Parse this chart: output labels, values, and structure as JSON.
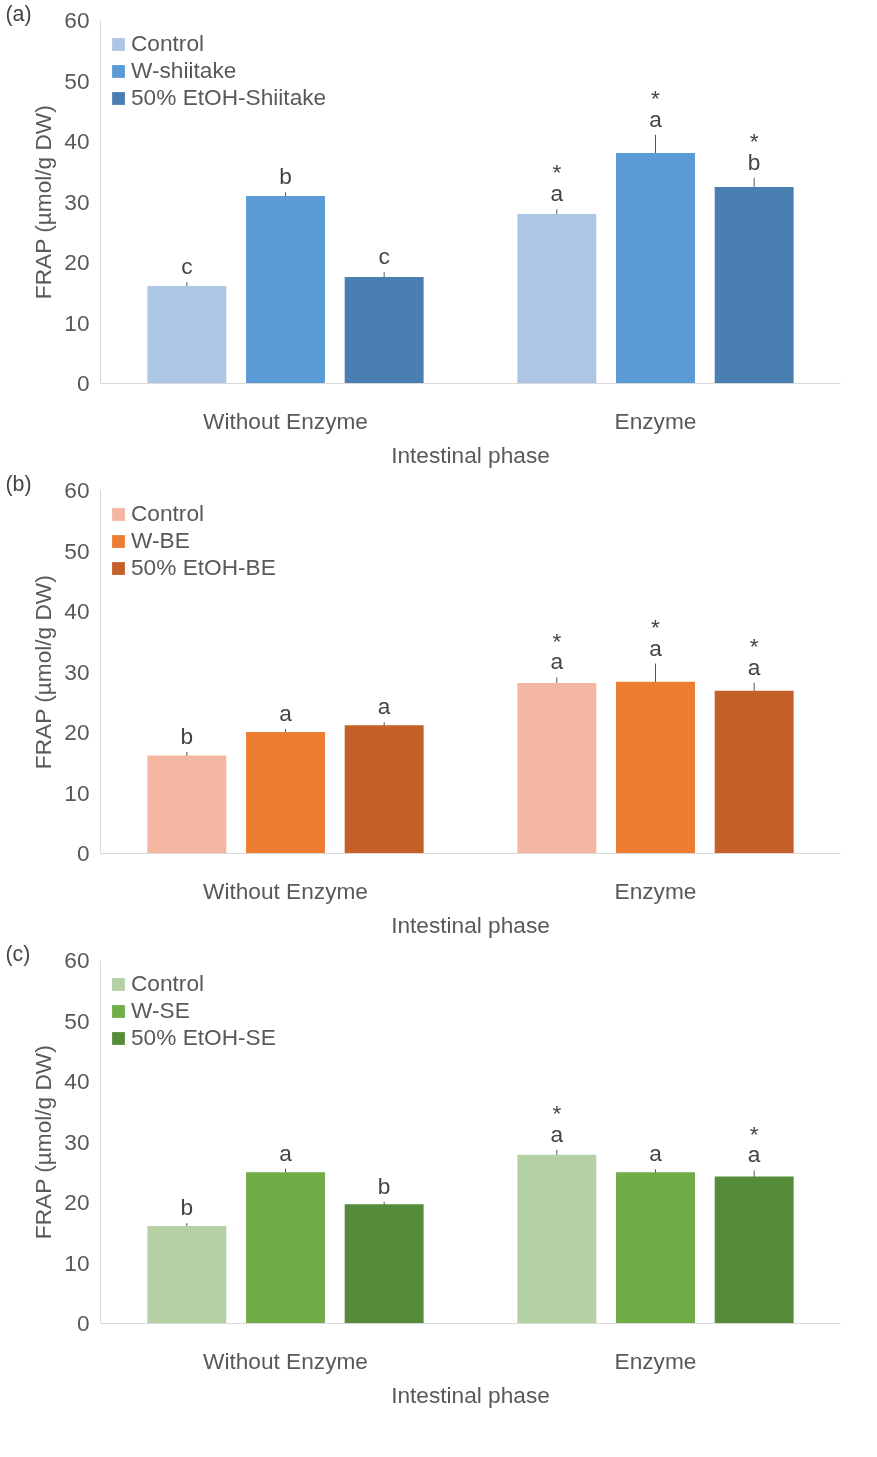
{
  "chart_data": [
    {
      "type": "bar",
      "annotations": [
        "(a)"
      ],
      "categories": [
        "Without Enzyme",
        "Enzyme"
      ],
      "xlabel": "Intestinal phase",
      "ylabel": "FRAP (µmol/g DW)",
      "ylim": [
        0,
        60
      ],
      "yticks": [
        0,
        10,
        20,
        30,
        40,
        50,
        60
      ],
      "grid": false,
      "legend": "top left",
      "series": [
        {
          "name": "Control",
          "color": "#adc6e6",
          "values": [
            16.1,
            28.0
          ],
          "errors": [
            0.6,
            0.8
          ],
          "value_labels": [
            "c",
            "*\na"
          ]
        },
        {
          "name": "W-shiitake",
          "color": "#5b9bd5",
          "values": [
            31.0,
            38.1
          ],
          "errors": [
            0.6,
            3.0
          ],
          "value_labels": [
            "b",
            "*\na"
          ]
        },
        {
          "name": "50% EtOH-Shiitake",
          "color": "#4a7eb0",
          "values": [
            17.6,
            32.5
          ],
          "errors": [
            0.8,
            1.5
          ],
          "value_labels": [
            "c",
            "*\nb"
          ]
        }
      ]
    },
    {
      "type": "bar",
      "annotations": [
        "(b)"
      ],
      "categories": [
        "Without Enzyme",
        "Enzyme"
      ],
      "xlabel": "Intestinal phase",
      "ylabel": "FRAP (µmol/g DW)",
      "ylim": [
        0,
        60
      ],
      "yticks": [
        0,
        10,
        20,
        30,
        40,
        50,
        60
      ],
      "grid": false,
      "legend": "top left",
      "series": [
        {
          "name": "Control",
          "color": "#f4b6a0",
          "values": [
            16.2,
            28.2
          ],
          "errors": [
            0.6,
            0.9
          ],
          "value_labels": [
            "b",
            "*\na"
          ]
        },
        {
          "name": "W-BE",
          "color": "#ed7d31",
          "values": [
            20.1,
            28.4
          ],
          "errors": [
            0.5,
            3.0
          ],
          "value_labels": [
            "a",
            "*\na"
          ]
        },
        {
          "name": "50% EtOH-BE",
          "color": "#c55f28",
          "values": [
            21.2,
            26.9
          ],
          "errors": [
            0.5,
            1.3
          ],
          "value_labels": [
            "a",
            "*\na"
          ]
        }
      ]
    },
    {
      "type": "bar",
      "annotations": [
        "(c)"
      ],
      "categories": [
        "Without Enzyme",
        "Enzyme"
      ],
      "xlabel": "Intestinal phase",
      "ylabel": "FRAP (µmol/g DW)",
      "ylim": [
        0,
        60
      ],
      "yticks": [
        0,
        10,
        20,
        30,
        40,
        50,
        60
      ],
      "grid": false,
      "legend": "top left",
      "series": [
        {
          "name": "Control",
          "color": "#b5d0a5",
          "values": [
            16.1,
            27.9
          ],
          "errors": [
            0.5,
            0.8
          ],
          "value_labels": [
            "b",
            "*\na"
          ]
        },
        {
          "name": "W-SE",
          "color": "#70ad47",
          "values": [
            25.0,
            25.0
          ],
          "errors": [
            0.6,
            0.5
          ],
          "value_labels": [
            "a",
            "a"
          ]
        },
        {
          "name": "50% EtOH-SE",
          "color": "#548c3a",
          "values": [
            19.7,
            24.3
          ],
          "errors": [
            0.4,
            1.0
          ],
          "value_labels": [
            "b",
            "*\na"
          ]
        }
      ]
    }
  ]
}
